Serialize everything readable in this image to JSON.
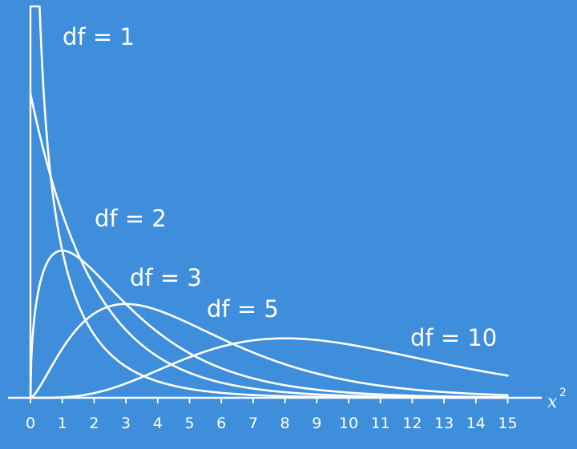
{
  "chart_data": {
    "type": "line",
    "title": "",
    "xlabel": "x",
    "xlabel_superscript": "2",
    "ylabel": "",
    "xlim": [
      0,
      15
    ],
    "x_ticks": [
      "0",
      "1",
      "2",
      "3",
      "4",
      "5",
      "6",
      "7",
      "8",
      "9",
      "10",
      "11",
      "12",
      "13",
      "14",
      "15"
    ],
    "grid": false,
    "legend": "inline labels",
    "series": [
      {
        "name": "df = 1",
        "df": 1
      },
      {
        "name": "df = 2",
        "df": 2
      },
      {
        "name": "df = 3",
        "df": 3
      },
      {
        "name": "df = 5",
        "df": 5
      },
      {
        "name": "df = 10",
        "df": 10
      }
    ],
    "colors": {
      "background": "#3F8EDB",
      "foreground": "#FFFFFF"
    }
  }
}
